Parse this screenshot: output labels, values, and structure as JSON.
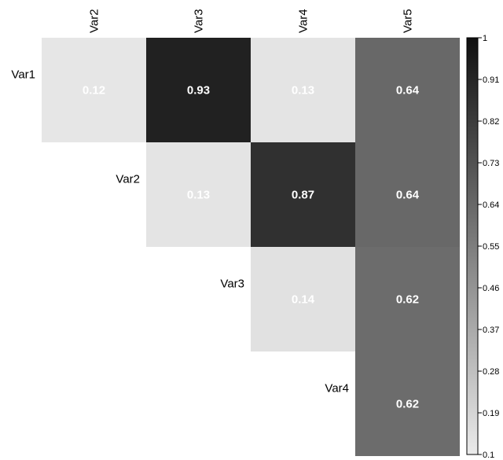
{
  "chart_data": {
    "type": "heatmap",
    "title": "",
    "layout": "upper-triangle correlation matrix",
    "columns": [
      "Var2",
      "Var3",
      "Var4",
      "Var5"
    ],
    "rows": [
      "Var1",
      "Var2",
      "Var3",
      "Var4"
    ],
    "cells": [
      {
        "row": "Var1",
        "col": "Var2",
        "value": 0.12,
        "label": "0.12"
      },
      {
        "row": "Var1",
        "col": "Var3",
        "value": 0.93,
        "label": "0.93"
      },
      {
        "row": "Var1",
        "col": "Var4",
        "value": 0.13,
        "label": "0.13"
      },
      {
        "row": "Var1",
        "col": "Var5",
        "value": 0.64,
        "label": "0.64"
      },
      {
        "row": "Var2",
        "col": "Var3",
        "value": 0.13,
        "label": "0.13"
      },
      {
        "row": "Var2",
        "col": "Var4",
        "value": 0.87,
        "label": "0.87"
      },
      {
        "row": "Var2",
        "col": "Var5",
        "value": 0.64,
        "label": "0.64"
      },
      {
        "row": "Var3",
        "col": "Var4",
        "value": 0.14,
        "label": "0.14"
      },
      {
        "row": "Var3",
        "col": "Var5",
        "value": 0.62,
        "label": "0.62"
      },
      {
        "row": "Var4",
        "col": "Var5",
        "value": 0.62,
        "label": "0.62"
      }
    ],
    "colorbar": {
      "min": 0.1,
      "max": 1,
      "ticks": [
        "1",
        "0.91",
        "0.82",
        "0.73",
        "0.64",
        "0.55",
        "0.46",
        "0.37",
        "0.28",
        "0.19",
        "0.1"
      ],
      "colors": {
        "low": "#ebebeb",
        "high": "#101010"
      }
    }
  }
}
